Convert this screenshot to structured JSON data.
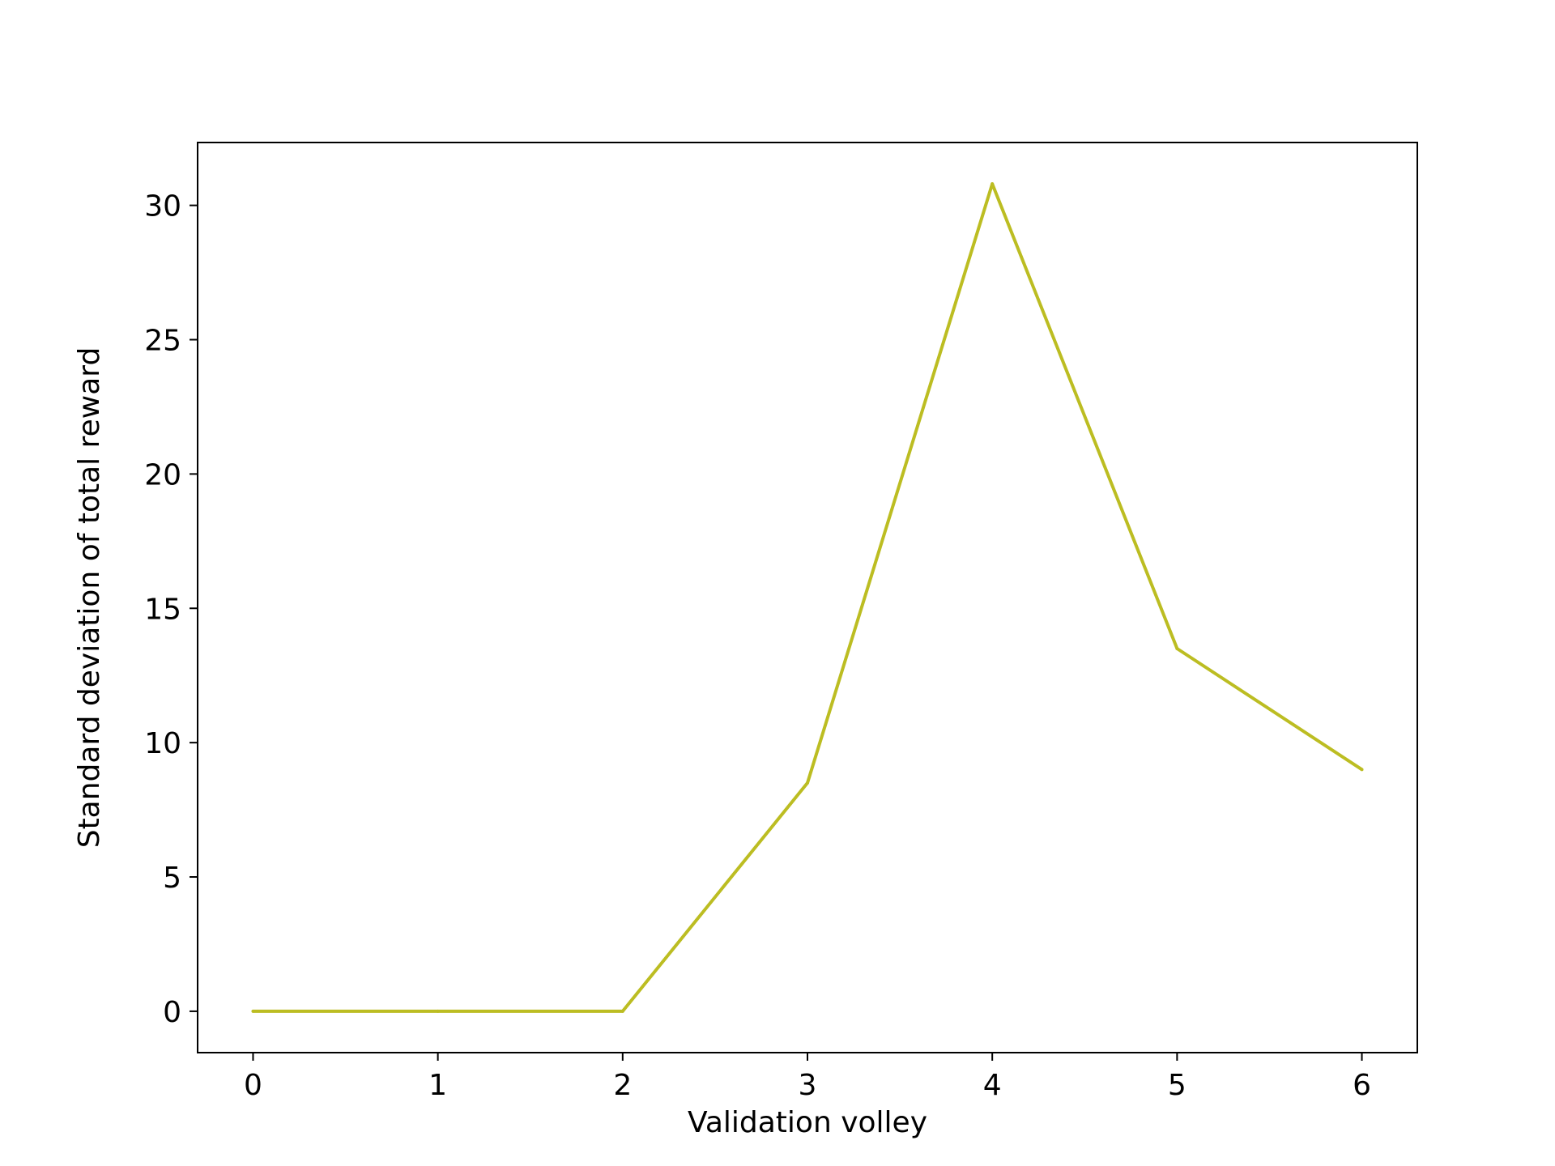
{
  "chart_data": {
    "type": "line",
    "title": "",
    "xlabel": "Validation volley",
    "ylabel": "Standard deviation of total reward",
    "x": [
      0,
      1,
      2,
      3,
      4,
      5,
      6
    ],
    "series": [
      {
        "values": [
          0,
          0,
          0,
          8.5,
          30.8,
          13.5,
          9.0
        ],
        "color": "#bcbd22"
      }
    ],
    "xlim": [
      -0.3,
      6.3
    ],
    "ylim": [
      -1.54,
      32.34
    ],
    "xticks": [
      0,
      1,
      2,
      3,
      4,
      5,
      6
    ],
    "yticks": [
      0,
      5,
      10,
      15,
      20,
      25,
      30
    ],
    "grid": false,
    "legend": "none"
  }
}
